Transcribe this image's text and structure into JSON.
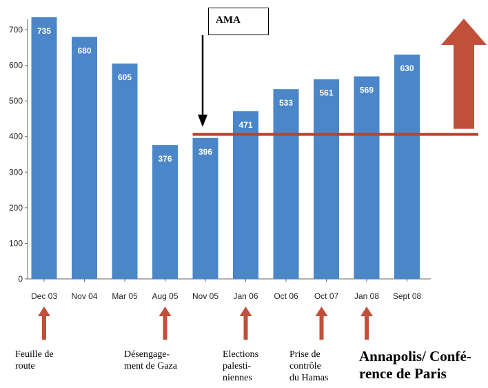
{
  "chart_data": {
    "type": "bar",
    "categories": [
      "Dec 03",
      "Nov 04",
      "Mar 05",
      "Aug 05",
      "Nov 05",
      "Jan 06",
      "Oct 06",
      "Oct 07",
      "Jan 08",
      "Sept 08"
    ],
    "values": [
      735,
      680,
      605,
      376,
      396,
      471,
      533,
      561,
      569,
      630
    ],
    "data_labels": [
      "735",
      "680",
      "605",
      "376",
      "396",
      "471",
      "533",
      "561",
      "569",
      "630"
    ],
    "yticks": [
      0,
      100,
      200,
      300,
      400,
      500,
      600,
      700
    ],
    "ylim": [
      0,
      735
    ],
    "bar_color": "#4a86c8",
    "reference_line": {
      "value": 410,
      "color": "#b5442e"
    },
    "trend_arrow_color": "#c0503a",
    "event_arrow_color": "#c0503a",
    "grid": false,
    "callout": {
      "label": "AMA",
      "points_to_category": "Nov 05"
    },
    "events": [
      {
        "category": "Dec 03",
        "lines": [
          "Feuille de",
          "route"
        ]
      },
      {
        "category": "Aug 05",
        "lines": [
          "Désengage-",
          "ment de Gaza"
        ]
      },
      {
        "category": "Jan 06",
        "lines": [
          "Elections",
          "palesti-",
          "niennes"
        ]
      },
      {
        "category": "Oct 07",
        "lines": [
          "Prise de",
          "contrôle",
          "du Hamas"
        ]
      },
      {
        "category": "Jan 08",
        "lines": [
          "Annapolis/ Confé-",
          "rence de Paris"
        ]
      }
    ]
  }
}
